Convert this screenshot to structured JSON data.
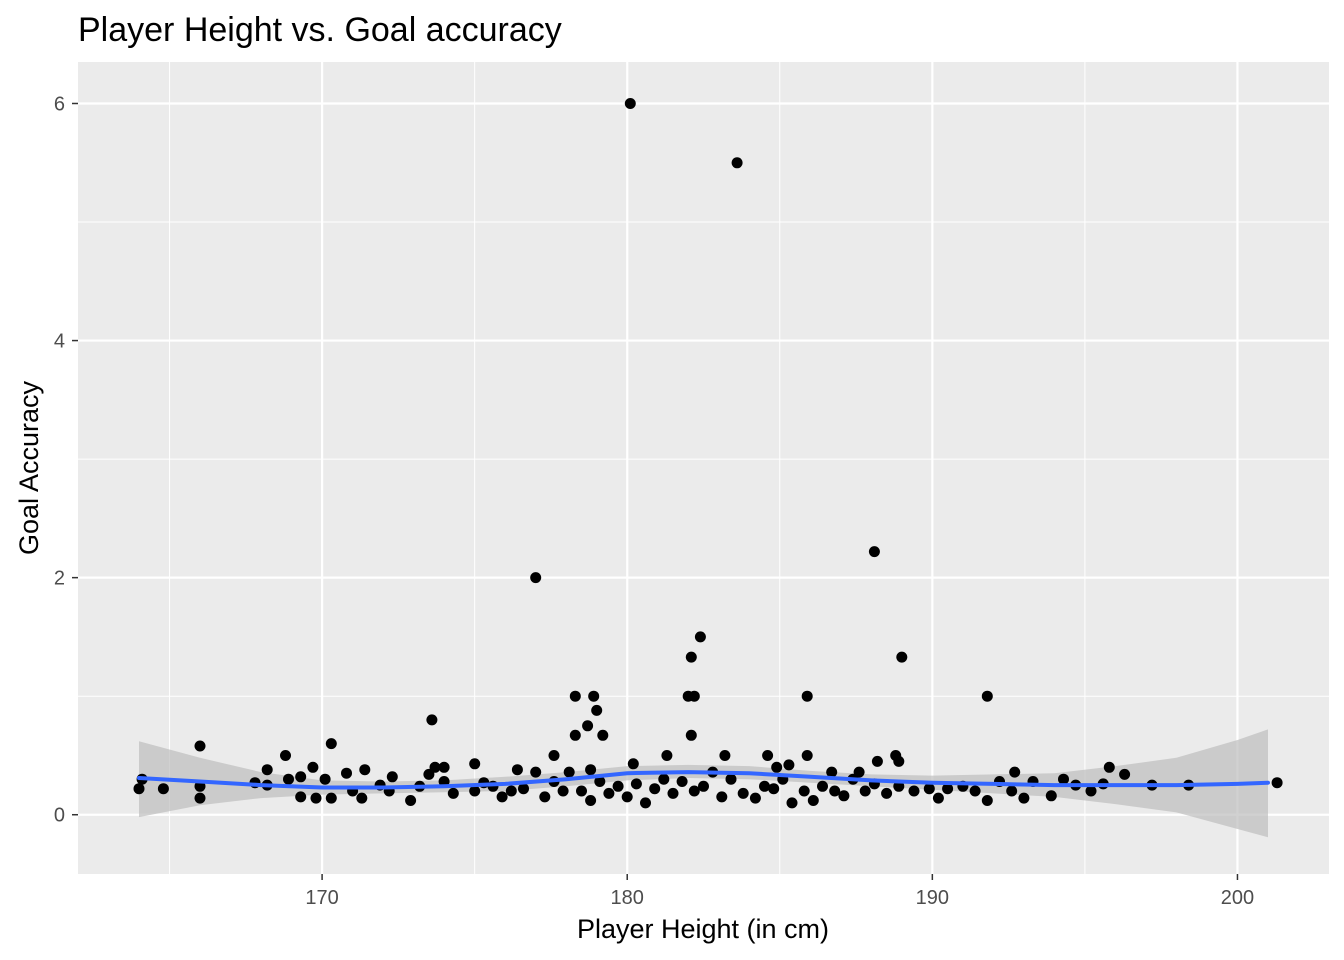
{
  "chart_data": {
    "type": "scatter",
    "title": "Player Height vs. Goal accuracy",
    "xlabel": "Player Height (in cm)",
    "ylabel": "Goal Accuracy",
    "xlim": [
      162.0,
      203.0
    ],
    "ylim": [
      -0.5,
      6.35
    ],
    "x_ticks": [
      170,
      180,
      190,
      200
    ],
    "y_ticks": [
      0,
      2,
      4,
      6
    ],
    "grid": true,
    "legend": "none",
    "colors": {
      "panel": "#ebebeb",
      "grid": "#ffffff",
      "points": "#000000",
      "smooth": "#3366ff",
      "ribbon": "#bebebe"
    },
    "points": [
      [
        180.1,
        6.0
      ],
      [
        183.6,
        5.5
      ],
      [
        188.1,
        2.22
      ],
      [
        177.0,
        2.0
      ],
      [
        182.4,
        1.5
      ],
      [
        182.1,
        1.33
      ],
      [
        189.0,
        1.33
      ],
      [
        182.0,
        1.0
      ],
      [
        182.2,
        1.0
      ],
      [
        185.9,
        1.0
      ],
      [
        191.8,
        1.0
      ],
      [
        178.3,
        1.0
      ],
      [
        178.9,
        1.0
      ],
      [
        179.0,
        0.88
      ],
      [
        173.6,
        0.8
      ],
      [
        178.7,
        0.75
      ],
      [
        178.3,
        0.67
      ],
      [
        179.2,
        0.67
      ],
      [
        182.1,
        0.67
      ],
      [
        166.0,
        0.58
      ],
      [
        170.3,
        0.6
      ],
      [
        168.8,
        0.5
      ],
      [
        177.6,
        0.5
      ],
      [
        181.3,
        0.5
      ],
      [
        183.2,
        0.5
      ],
      [
        184.6,
        0.5
      ],
      [
        185.9,
        0.5
      ],
      [
        188.8,
        0.5
      ],
      [
        188.9,
        0.45
      ],
      [
        188.2,
        0.45
      ],
      [
        180.2,
        0.43
      ],
      [
        175.0,
        0.43
      ],
      [
        173.7,
        0.4
      ],
      [
        174.0,
        0.4
      ],
      [
        171.4,
        0.38
      ],
      [
        169.7,
        0.4
      ],
      [
        168.2,
        0.38
      ],
      [
        176.4,
        0.38
      ],
      [
        178.8,
        0.38
      ],
      [
        184.9,
        0.4
      ],
      [
        185.3,
        0.42
      ],
      [
        186.7,
        0.36
      ],
      [
        187.6,
        0.36
      ],
      [
        192.7,
        0.36
      ],
      [
        195.8,
        0.4
      ],
      [
        196.3,
        0.34
      ],
      [
        164.1,
        0.3
      ],
      [
        164.0,
        0.22
      ],
      [
        164.8,
        0.22
      ],
      [
        166.0,
        0.14
      ],
      [
        166.0,
        0.24
      ],
      [
        167.8,
        0.27
      ],
      [
        168.2,
        0.25
      ],
      [
        168.9,
        0.3
      ],
      [
        169.3,
        0.32
      ],
      [
        169.3,
        0.15
      ],
      [
        169.8,
        0.14
      ],
      [
        170.1,
        0.3
      ],
      [
        170.3,
        0.14
      ],
      [
        170.8,
        0.35
      ],
      [
        171.0,
        0.2
      ],
      [
        171.3,
        0.14
      ],
      [
        171.9,
        0.25
      ],
      [
        172.2,
        0.2
      ],
      [
        172.3,
        0.32
      ],
      [
        172.9,
        0.12
      ],
      [
        173.2,
        0.24
      ],
      [
        173.5,
        0.34
      ],
      [
        174.0,
        0.28
      ],
      [
        174.3,
        0.18
      ],
      [
        175.0,
        0.2
      ],
      [
        175.3,
        0.27
      ],
      [
        175.6,
        0.24
      ],
      [
        175.9,
        0.15
      ],
      [
        176.2,
        0.2
      ],
      [
        176.6,
        0.22
      ],
      [
        177.0,
        0.36
      ],
      [
        177.3,
        0.15
      ],
      [
        177.6,
        0.28
      ],
      [
        177.9,
        0.2
      ],
      [
        178.1,
        0.36
      ],
      [
        178.5,
        0.2
      ],
      [
        178.8,
        0.12
      ],
      [
        179.1,
        0.28
      ],
      [
        179.4,
        0.18
      ],
      [
        179.7,
        0.24
      ],
      [
        180.0,
        0.15
      ],
      [
        180.3,
        0.26
      ],
      [
        180.6,
        0.1
      ],
      [
        180.9,
        0.22
      ],
      [
        181.2,
        0.3
      ],
      [
        181.5,
        0.18
      ],
      [
        181.8,
        0.28
      ],
      [
        182.2,
        0.2
      ],
      [
        182.5,
        0.24
      ],
      [
        182.8,
        0.36
      ],
      [
        183.1,
        0.15
      ],
      [
        183.4,
        0.3
      ],
      [
        183.8,
        0.18
      ],
      [
        184.2,
        0.14
      ],
      [
        184.5,
        0.24
      ],
      [
        184.8,
        0.22
      ],
      [
        185.1,
        0.3
      ],
      [
        185.4,
        0.1
      ],
      [
        185.8,
        0.2
      ],
      [
        186.1,
        0.12
      ],
      [
        186.4,
        0.24
      ],
      [
        186.8,
        0.2
      ],
      [
        187.1,
        0.16
      ],
      [
        187.4,
        0.3
      ],
      [
        187.8,
        0.2
      ],
      [
        188.1,
        0.26
      ],
      [
        188.5,
        0.18
      ],
      [
        188.9,
        0.24
      ],
      [
        189.4,
        0.2
      ],
      [
        189.9,
        0.22
      ],
      [
        190.2,
        0.14
      ],
      [
        190.5,
        0.22
      ],
      [
        191.0,
        0.24
      ],
      [
        191.4,
        0.2
      ],
      [
        191.8,
        0.12
      ],
      [
        192.2,
        0.28
      ],
      [
        192.6,
        0.2
      ],
      [
        193.0,
        0.14
      ],
      [
        193.3,
        0.28
      ],
      [
        193.9,
        0.16
      ],
      [
        194.3,
        0.3
      ],
      [
        194.7,
        0.25
      ],
      [
        195.2,
        0.2
      ],
      [
        195.6,
        0.26
      ],
      [
        197.2,
        0.25
      ],
      [
        198.4,
        0.25
      ],
      [
        201.3,
        0.27
      ]
    ],
    "smooth": {
      "x": [
        164,
        166,
        168,
        170,
        172,
        174,
        176,
        178,
        180,
        182,
        184,
        186,
        188,
        190,
        192,
        194,
        196,
        198,
        200,
        201
      ],
      "y": [
        0.31,
        0.28,
        0.25,
        0.23,
        0.23,
        0.24,
        0.26,
        0.3,
        0.35,
        0.36,
        0.35,
        0.32,
        0.29,
        0.27,
        0.26,
        0.25,
        0.25,
        0.25,
        0.26,
        0.27
      ],
      "lower": [
        -0.02,
        0.08,
        0.14,
        0.17,
        0.18,
        0.19,
        0.2,
        0.24,
        0.29,
        0.31,
        0.3,
        0.27,
        0.24,
        0.21,
        0.18,
        0.15,
        0.09,
        0.02,
        -0.12,
        -0.19
      ],
      "upper": [
        0.62,
        0.48,
        0.36,
        0.29,
        0.28,
        0.29,
        0.32,
        0.36,
        0.41,
        0.42,
        0.41,
        0.37,
        0.34,
        0.33,
        0.34,
        0.35,
        0.41,
        0.48,
        0.63,
        0.72
      ]
    }
  }
}
